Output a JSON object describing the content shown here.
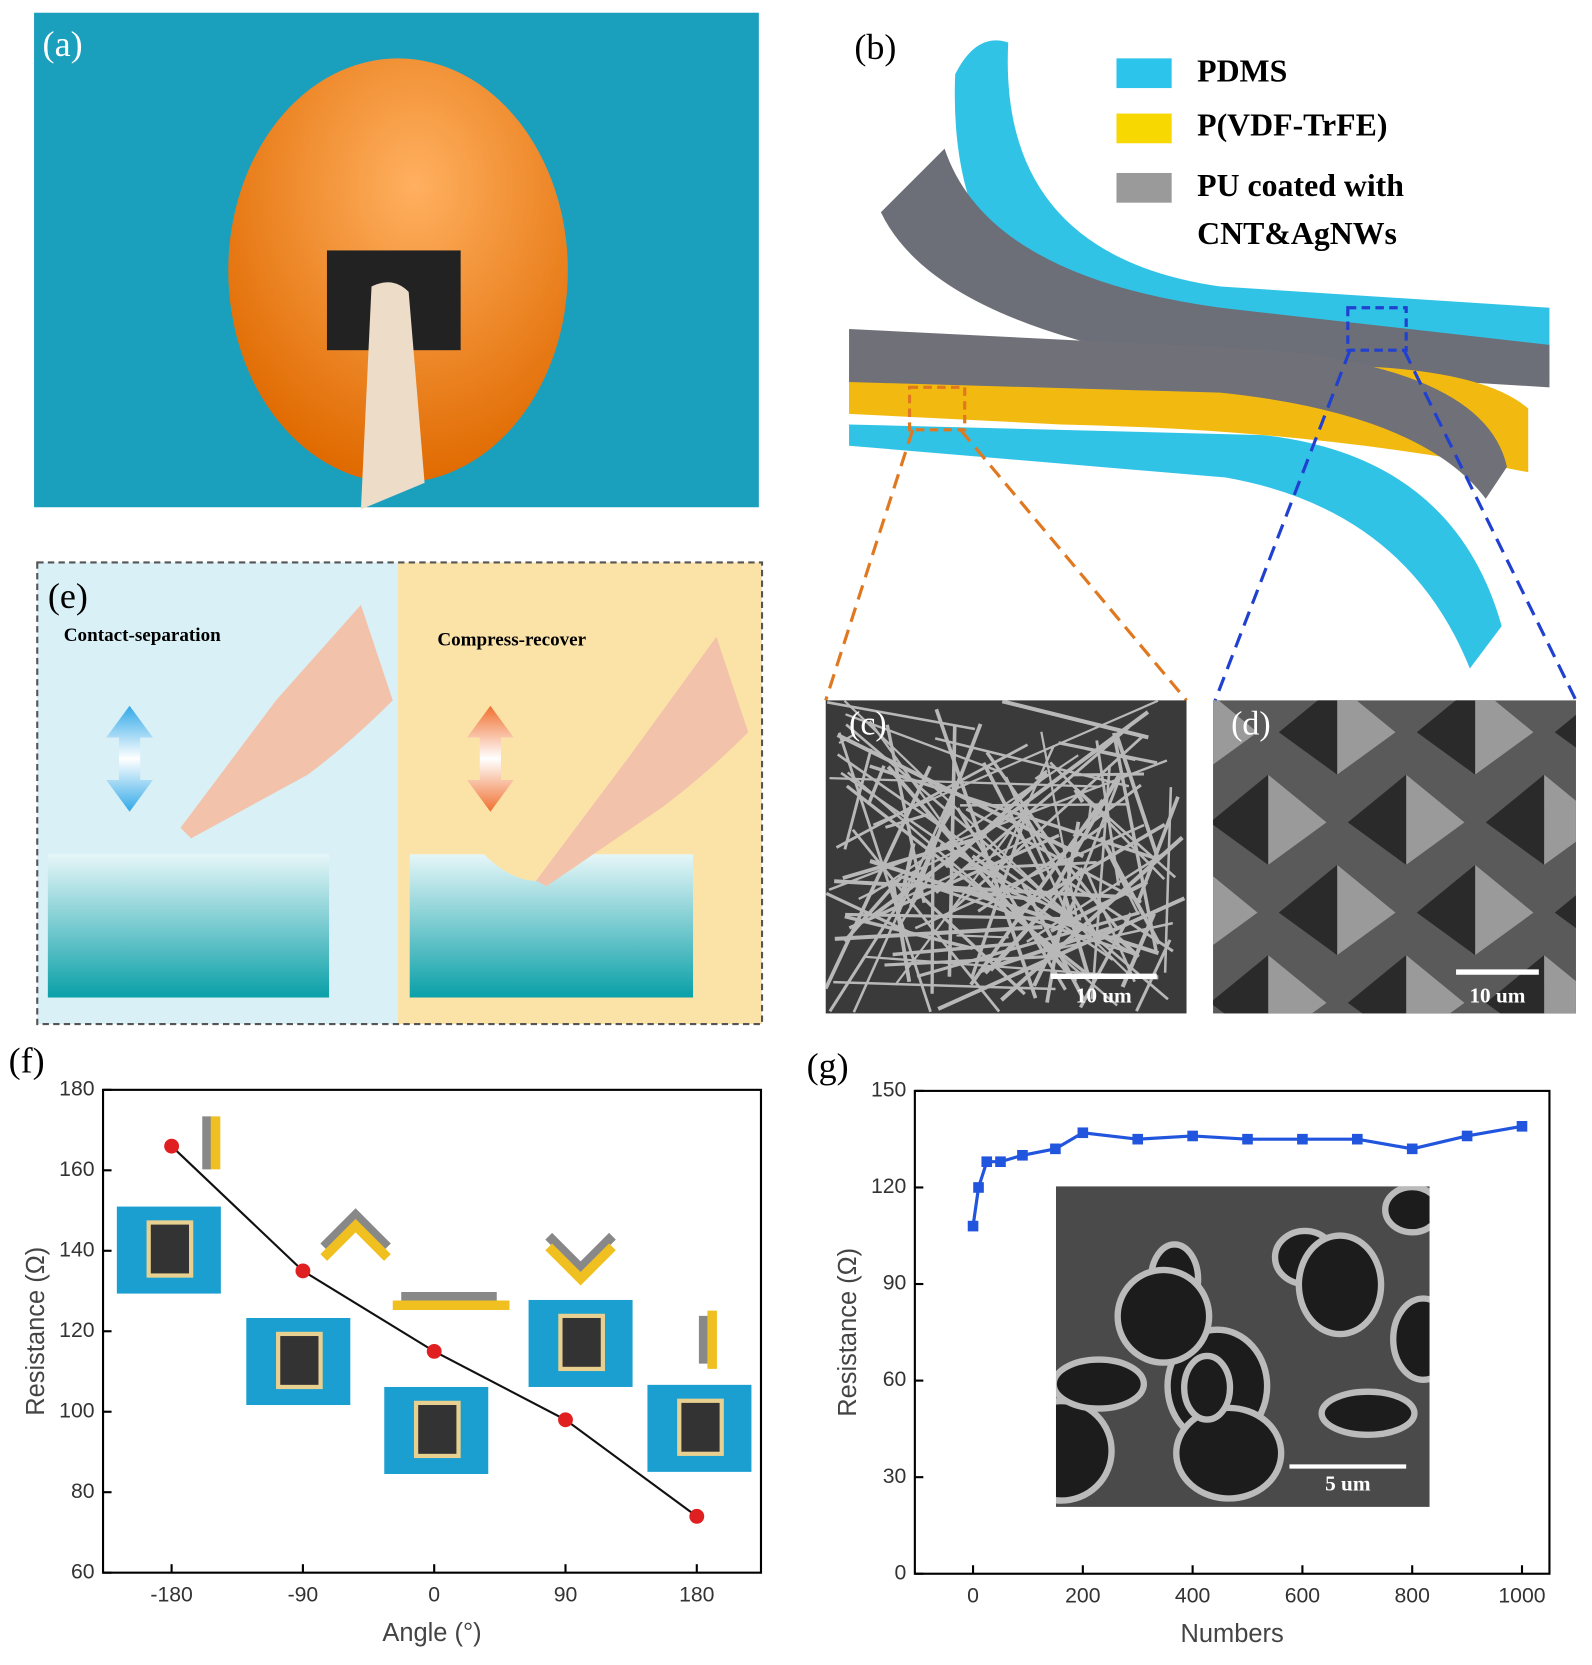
{
  "panel_labels": [
    "(a)",
    "(b)",
    "(c)",
    "(d)",
    "(e)",
    "(f)",
    "(g)"
  ],
  "legend": [
    "PDMS",
    "P(VDF-TrFE)",
    "PU coated with",
    "CNT&AgNWs"
  ],
  "mode_labels": [
    "Contact-separation",
    "Compress-recover"
  ],
  "scale_bars": [
    "10 um",
    "10 um",
    "5 um"
  ],
  "chart_data": [
    {
      "type": "line",
      "x_label": "Angle (°)",
      "y_label": "Resistance (Ω)",
      "x": [
        -180,
        -90,
        0,
        90,
        180
      ],
      "values": [
        166,
        135,
        115,
        98,
        74
      ],
      "color": "#111111",
      "marker_color": "#e02020",
      "xlim": [
        -227,
        224
      ],
      "ylim": [
        60,
        180
      ],
      "xticks": [
        -180,
        -90,
        0,
        90,
        180
      ],
      "yticks": [
        60,
        80,
        100,
        120,
        140,
        160,
        180
      ]
    },
    {
      "type": "line",
      "x_label": "Numbers",
      "y_label": "Resistance (Ω)",
      "x": [
        0,
        10,
        25,
        50,
        90,
        150,
        200,
        300,
        400,
        500,
        600,
        700,
        800,
        900,
        1000
      ],
      "values": [
        108,
        120,
        128,
        128,
        130,
        132,
        137,
        135,
        136,
        135,
        135,
        135,
        132,
        136,
        139
      ],
      "color": "#2255dd",
      "marker_color": "#2255dd",
      "xlim": [
        -106,
        1050
      ],
      "ylim": [
        0,
        150
      ],
      "xticks": [
        0,
        200,
        400,
        600,
        800,
        1000
      ],
      "yticks": [
        0,
        30,
        60,
        90,
        120,
        150
      ]
    }
  ]
}
